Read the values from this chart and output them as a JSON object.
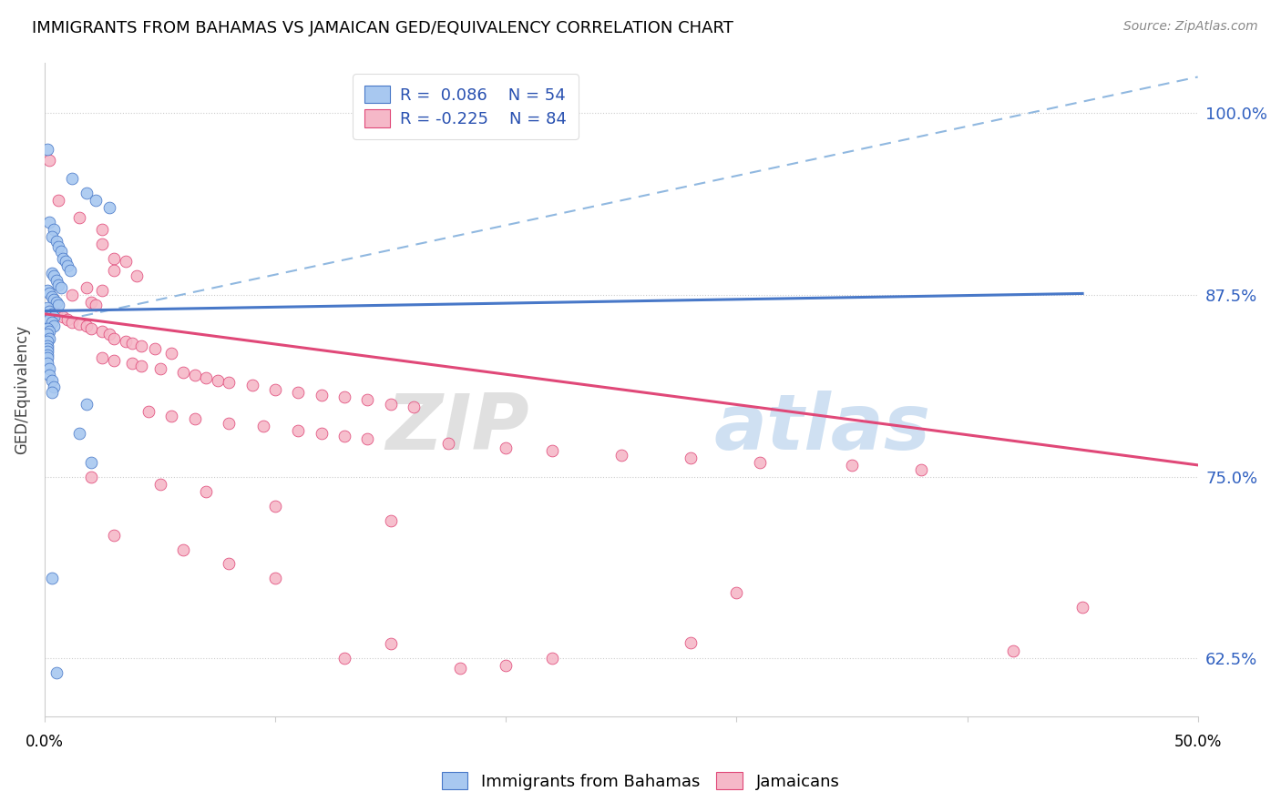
{
  "title": "IMMIGRANTS FROM BAHAMAS VS JAMAICAN GED/EQUIVALENCY CORRELATION CHART",
  "source": "Source: ZipAtlas.com",
  "ylabel": "GED/Equivalency",
  "yticks": [
    "62.5%",
    "75.0%",
    "87.5%",
    "100.0%"
  ],
  "ytick_vals": [
    0.625,
    0.75,
    0.875,
    1.0
  ],
  "xlim": [
    0.0,
    0.5
  ],
  "ylim": [
    0.585,
    1.035
  ],
  "color_blue": "#a8c8f0",
  "color_pink": "#f5b8c8",
  "color_blue_line": "#4878c8",
  "color_pink_line": "#e04878",
  "color_dashed": "#90b8e0",
  "watermark_zip": "ZIP",
  "watermark_atlas": "atlas",
  "blue_scatter": [
    [
      0.001,
      0.975
    ],
    [
      0.012,
      0.955
    ],
    [
      0.018,
      0.945
    ],
    [
      0.022,
      0.94
    ],
    [
      0.028,
      0.935
    ],
    [
      0.002,
      0.925
    ],
    [
      0.004,
      0.92
    ],
    [
      0.003,
      0.915
    ],
    [
      0.005,
      0.912
    ],
    [
      0.006,
      0.908
    ],
    [
      0.007,
      0.905
    ],
    [
      0.008,
      0.9
    ],
    [
      0.009,
      0.898
    ],
    [
      0.01,
      0.895
    ],
    [
      0.011,
      0.892
    ],
    [
      0.003,
      0.89
    ],
    [
      0.004,
      0.888
    ],
    [
      0.005,
      0.885
    ],
    [
      0.006,
      0.882
    ],
    [
      0.007,
      0.88
    ],
    [
      0.001,
      0.878
    ],
    [
      0.002,
      0.876
    ],
    [
      0.003,
      0.874
    ],
    [
      0.004,
      0.872
    ],
    [
      0.005,
      0.87
    ],
    [
      0.006,
      0.868
    ],
    [
      0.001,
      0.866
    ],
    [
      0.002,
      0.864
    ],
    [
      0.003,
      0.862
    ],
    [
      0.004,
      0.86
    ],
    [
      0.002,
      0.858
    ],
    [
      0.003,
      0.856
    ],
    [
      0.004,
      0.854
    ],
    [
      0.001,
      0.852
    ],
    [
      0.002,
      0.85
    ],
    [
      0.001,
      0.848
    ],
    [
      0.002,
      0.845
    ],
    [
      0.001,
      0.843
    ],
    [
      0.001,
      0.84
    ],
    [
      0.001,
      0.838
    ],
    [
      0.001,
      0.836
    ],
    [
      0.001,
      0.834
    ],
    [
      0.001,
      0.832
    ],
    [
      0.001,
      0.828
    ],
    [
      0.002,
      0.824
    ],
    [
      0.002,
      0.82
    ],
    [
      0.003,
      0.816
    ],
    [
      0.004,
      0.812
    ],
    [
      0.003,
      0.808
    ],
    [
      0.018,
      0.8
    ],
    [
      0.015,
      0.78
    ],
    [
      0.02,
      0.76
    ],
    [
      0.003,
      0.68
    ],
    [
      0.005,
      0.615
    ]
  ],
  "pink_scatter": [
    [
      0.002,
      0.968
    ],
    [
      0.006,
      0.94
    ],
    [
      0.015,
      0.928
    ],
    [
      0.025,
      0.92
    ],
    [
      0.025,
      0.91
    ],
    [
      0.03,
      0.9
    ],
    [
      0.035,
      0.898
    ],
    [
      0.03,
      0.892
    ],
    [
      0.04,
      0.888
    ],
    [
      0.018,
      0.88
    ],
    [
      0.025,
      0.878
    ],
    [
      0.012,
      0.875
    ],
    [
      0.02,
      0.87
    ],
    [
      0.022,
      0.868
    ],
    [
      0.003,
      0.865
    ],
    [
      0.005,
      0.862
    ],
    [
      0.008,
      0.86
    ],
    [
      0.01,
      0.858
    ],
    [
      0.012,
      0.856
    ],
    [
      0.015,
      0.855
    ],
    [
      0.018,
      0.854
    ],
    [
      0.02,
      0.852
    ],
    [
      0.025,
      0.85
    ],
    [
      0.028,
      0.848
    ],
    [
      0.03,
      0.845
    ],
    [
      0.035,
      0.843
    ],
    [
      0.038,
      0.842
    ],
    [
      0.042,
      0.84
    ],
    [
      0.048,
      0.838
    ],
    [
      0.055,
      0.835
    ],
    [
      0.025,
      0.832
    ],
    [
      0.03,
      0.83
    ],
    [
      0.038,
      0.828
    ],
    [
      0.042,
      0.826
    ],
    [
      0.05,
      0.824
    ],
    [
      0.06,
      0.822
    ],
    [
      0.065,
      0.82
    ],
    [
      0.07,
      0.818
    ],
    [
      0.075,
      0.816
    ],
    [
      0.08,
      0.815
    ],
    [
      0.09,
      0.813
    ],
    [
      0.1,
      0.81
    ],
    [
      0.11,
      0.808
    ],
    [
      0.12,
      0.806
    ],
    [
      0.13,
      0.805
    ],
    [
      0.14,
      0.803
    ],
    [
      0.15,
      0.8
    ],
    [
      0.16,
      0.798
    ],
    [
      0.045,
      0.795
    ],
    [
      0.055,
      0.792
    ],
    [
      0.065,
      0.79
    ],
    [
      0.08,
      0.787
    ],
    [
      0.095,
      0.785
    ],
    [
      0.11,
      0.782
    ],
    [
      0.12,
      0.78
    ],
    [
      0.13,
      0.778
    ],
    [
      0.14,
      0.776
    ],
    [
      0.175,
      0.773
    ],
    [
      0.2,
      0.77
    ],
    [
      0.22,
      0.768
    ],
    [
      0.25,
      0.765
    ],
    [
      0.28,
      0.763
    ],
    [
      0.31,
      0.76
    ],
    [
      0.35,
      0.758
    ],
    [
      0.38,
      0.755
    ],
    [
      0.02,
      0.75
    ],
    [
      0.05,
      0.745
    ],
    [
      0.07,
      0.74
    ],
    [
      0.1,
      0.73
    ],
    [
      0.15,
      0.72
    ],
    [
      0.03,
      0.71
    ],
    [
      0.06,
      0.7
    ],
    [
      0.08,
      0.69
    ],
    [
      0.1,
      0.68
    ],
    [
      0.3,
      0.67
    ],
    [
      0.45,
      0.66
    ],
    [
      0.28,
      0.636
    ],
    [
      0.22,
      0.625
    ],
    [
      0.15,
      0.635
    ],
    [
      0.42,
      0.63
    ],
    [
      0.2,
      0.62
    ],
    [
      0.13,
      0.625
    ],
    [
      0.18,
      0.618
    ]
  ],
  "blue_line_x": [
    0.0,
    0.45
  ],
  "blue_line_y": [
    0.864,
    0.876
  ],
  "pink_line_x": [
    0.0,
    0.5
  ],
  "pink_line_y": [
    0.862,
    0.758
  ],
  "dashed_line_x": [
    0.0,
    0.5
  ],
  "dashed_line_y": [
    0.855,
    1.025
  ]
}
